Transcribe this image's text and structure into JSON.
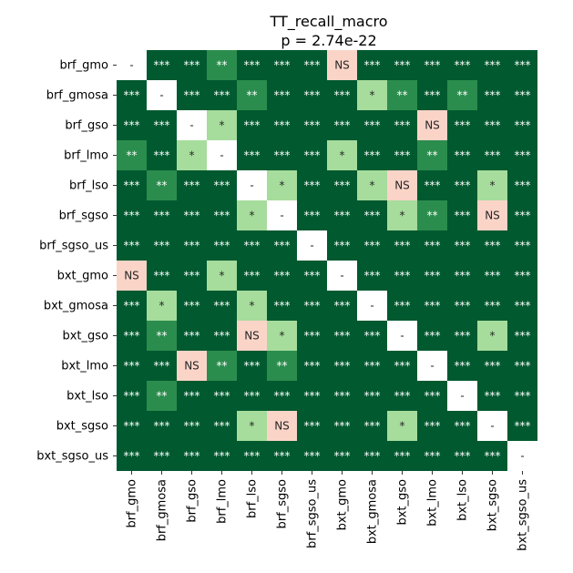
{
  "chart_data": {
    "type": "heatmap",
    "title": "TT_recall_macro",
    "subtitle": "p = 2.74e-22",
    "labels": [
      "brf_gmo",
      "brf_gmosa",
      "brf_gso",
      "brf_lmo",
      "brf_lso",
      "brf_sgso",
      "brf_sgso_us",
      "bxt_gmo",
      "bxt_gmosa",
      "bxt_gso",
      "bxt_lmo",
      "bxt_lso",
      "bxt_sgso",
      "bxt_sgso_us"
    ],
    "matrix": [
      [
        "-",
        "***",
        "***",
        "**",
        "***",
        "***",
        "***",
        "NS",
        "***",
        "***",
        "***",
        "***",
        "***",
        "***"
      ],
      [
        "***",
        "-",
        "***",
        "***",
        "**",
        "***",
        "***",
        "***",
        "*",
        "**",
        "***",
        "**",
        "***",
        "***"
      ],
      [
        "***",
        "***",
        "-",
        "*",
        "***",
        "***",
        "***",
        "***",
        "***",
        "***",
        "NS",
        "***",
        "***",
        "***"
      ],
      [
        "**",
        "***",
        "*",
        "-",
        "***",
        "***",
        "***",
        "*",
        "***",
        "***",
        "**",
        "***",
        "***",
        "***"
      ],
      [
        "***",
        "**",
        "***",
        "***",
        "-",
        "*",
        "***",
        "***",
        "*",
        "NS",
        "***",
        "***",
        "*",
        "***"
      ],
      [
        "***",
        "***",
        "***",
        "***",
        "*",
        "-",
        "***",
        "***",
        "***",
        "*",
        "**",
        "***",
        "NS",
        "***"
      ],
      [
        "***",
        "***",
        "***",
        "***",
        "***",
        "***",
        "-",
        "***",
        "***",
        "***",
        "***",
        "***",
        "***",
        "***"
      ],
      [
        "NS",
        "***",
        "***",
        "*",
        "***",
        "***",
        "***",
        "-",
        "***",
        "***",
        "***",
        "***",
        "***",
        "***"
      ],
      [
        "***",
        "*",
        "***",
        "***",
        "*",
        "***",
        "***",
        "***",
        "-",
        "***",
        "***",
        "***",
        "***",
        "***"
      ],
      [
        "***",
        "**",
        "***",
        "***",
        "NS",
        "*",
        "***",
        "***",
        "***",
        "-",
        "***",
        "***",
        "*",
        "***"
      ],
      [
        "***",
        "***",
        "NS",
        "**",
        "***",
        "**",
        "***",
        "***",
        "***",
        "***",
        "-",
        "***",
        "***",
        "***"
      ],
      [
        "***",
        "**",
        "***",
        "***",
        "***",
        "***",
        "***",
        "***",
        "***",
        "***",
        "***",
        "-",
        "***",
        "***"
      ],
      [
        "***",
        "***",
        "***",
        "***",
        "*",
        "NS",
        "***",
        "***",
        "***",
        "*",
        "***",
        "***",
        "-",
        "***"
      ],
      [
        "***",
        "***",
        "***",
        "***",
        "***",
        "***",
        "***",
        "***",
        "***",
        "***",
        "***",
        "***",
        "***",
        "-"
      ]
    ],
    "colors": {
      "***": "#00592f",
      "**": "#2b8d4d",
      "*": "#a6dc9c",
      "NS": "#fbd4c8",
      "-": "#ffffff"
    },
    "text_colors": {
      "***": "#ffffff",
      "**": "#ffffff",
      "*": "#262626",
      "NS": "#262626",
      "-": "#262626"
    }
  }
}
